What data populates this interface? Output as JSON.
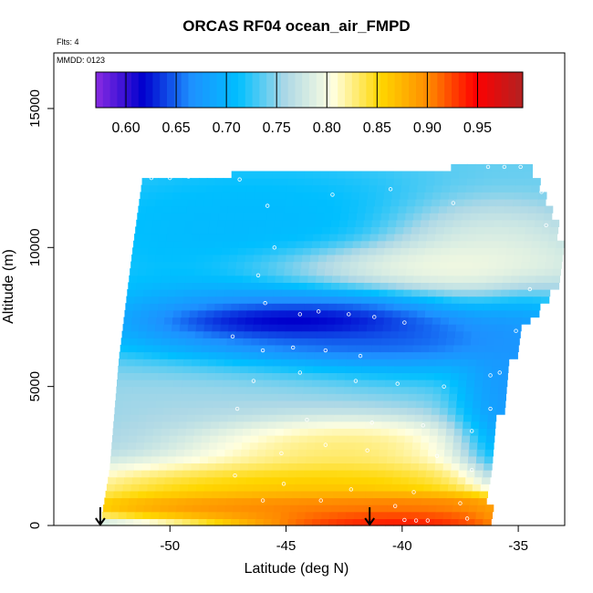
{
  "header": {
    "title": "ORCAS RF04 ocean_air_FMPD",
    "flights": "Flts: 4",
    "date_code": "MMDD: 0123"
  },
  "chart_data": {
    "type": "heatmap",
    "title": "ORCAS RF04 ocean_air_FMPD",
    "xlabel": "Latitude (deg N)",
    "ylabel": "Altitude (m)",
    "xlim": [
      -55,
      -33
    ],
    "ylim": [
      0,
      17000
    ],
    "x_ticks": [
      -50,
      -45,
      -40,
      -35
    ],
    "x_tick_labels": [
      "-50",
      "-45",
      "-40",
      "-35"
    ],
    "y_ticks": [
      0,
      5000,
      10000,
      15000
    ],
    "y_tick_labels": [
      "0",
      "5000",
      "10000",
      "15000"
    ],
    "colorbar": {
      "range": [
        0.57,
        0.995
      ],
      "ticks": [
        0.6,
        0.65,
        0.7,
        0.75,
        0.8,
        0.85,
        0.9,
        0.95
      ],
      "tick_labels": [
        "0.60",
        "0.65",
        "0.70",
        "0.75",
        "0.80",
        "0.85",
        "0.90",
        "0.95"
      ],
      "colors": [
        "#8a2be2",
        "#0000cd",
        "#1e90ff",
        "#00bfff",
        "#add8e6",
        "#ffffe0",
        "#ffd700",
        "#ff8c00",
        "#ff0000",
        "#b22222"
      ]
    },
    "coverage": {
      "south_edge": [
        [
          0,
          -53.0
        ],
        [
          2000,
          -52.6
        ],
        [
          4000,
          -52.4
        ],
        [
          6000,
          -52.2
        ],
        [
          8000,
          -51.9
        ],
        [
          10000,
          -51.6
        ],
        [
          12400,
          -51.2
        ]
      ],
      "north_edge": [
        [
          0,
          -36.5
        ],
        [
          1500,
          -36.3
        ],
        [
          3000,
          -36.1
        ],
        [
          5000,
          -35.8
        ],
        [
          7000,
          -35.0
        ],
        [
          9000,
          -33.2
        ],
        [
          11000,
          -33.5
        ],
        [
          12900,
          -34.7
        ]
      ],
      "top_profile": [
        [
          -51.2,
          12400
        ],
        [
          -48.5,
          12600
        ],
        [
          -44.0,
          12700
        ],
        [
          -40.0,
          12800
        ],
        [
          -37.0,
          12900
        ],
        [
          -34.7,
          12900
        ]
      ]
    },
    "field": [
      {
        "lat": -45.0,
        "alt": 7300,
        "value": 0.57,
        "spread_lat": 3.5,
        "spread_alt": 450
      },
      {
        "lat": -44.0,
        "alt": 7100,
        "value": 0.62,
        "spread_lat": 6.5,
        "spread_alt": 1300
      },
      {
        "lat": -43.5,
        "alt": 6600,
        "value": 0.64,
        "spread_lat": 5.0,
        "spread_alt": 500
      },
      {
        "lat": -46.5,
        "alt": 10600,
        "value": 0.7,
        "spread_lat": 6.0,
        "spread_alt": 1800
      },
      {
        "lat": -40.0,
        "alt": 9300,
        "value": 0.82,
        "spread_lat": 5.0,
        "spread_alt": 700
      },
      {
        "lat": -37.0,
        "alt": 9800,
        "value": 0.8,
        "spread_lat": 3.5,
        "spread_alt": 1300
      },
      {
        "lat": -44.0,
        "alt": 3000,
        "value": 0.86,
        "spread_lat": 4.5,
        "spread_alt": 800
      },
      {
        "lat": -45.0,
        "alt": 1400,
        "value": 0.89,
        "spread_lat": 7.0,
        "spread_alt": 900
      },
      {
        "lat": -42.0,
        "alt": 700,
        "value": 0.95,
        "spread_lat": 9.0,
        "spread_alt": 400
      },
      {
        "lat": -40.5,
        "alt": 200,
        "value": 0.985,
        "spread_lat": 5.0,
        "spread_alt": 200
      },
      {
        "lat": -35.0,
        "alt": 4800,
        "value": 0.66,
        "spread_lat": 1.8,
        "spread_alt": 2500
      },
      {
        "lat": -48.0,
        "alt": 4500,
        "value": 0.76,
        "spread_lat": 6.0,
        "spread_alt": 2000
      }
    ],
    "baseline_value": 0.74,
    "sample_points": [
      {
        "lat": -50.8,
        "alt": 12500
      },
      {
        "lat": -50.0,
        "alt": 12500
      },
      {
        "lat": -49.2,
        "alt": 12550
      },
      {
        "lat": -48.4,
        "alt": 12580
      },
      {
        "lat": -47.6,
        "alt": 12600
      },
      {
        "lat": -47.0,
        "alt": 12450
      },
      {
        "lat": -45.8,
        "alt": 11500
      },
      {
        "lat": -45.5,
        "alt": 10000
      },
      {
        "lat": -46.2,
        "alt": 9000
      },
      {
        "lat": -45.9,
        "alt": 8000
      },
      {
        "lat": -44.4,
        "alt": 7600
      },
      {
        "lat": -43.6,
        "alt": 7700
      },
      {
        "lat": -42.3,
        "alt": 7600
      },
      {
        "lat": -41.2,
        "alt": 7500
      },
      {
        "lat": -39.9,
        "alt": 7300
      },
      {
        "lat": -47.3,
        "alt": 6800
      },
      {
        "lat": -46.0,
        "alt": 6300
      },
      {
        "lat": -44.7,
        "alt": 6400
      },
      {
        "lat": -43.3,
        "alt": 6300
      },
      {
        "lat": -41.8,
        "alt": 6100
      },
      {
        "lat": -46.4,
        "alt": 5200
      },
      {
        "lat": -44.4,
        "alt": 5500
      },
      {
        "lat": -42.0,
        "alt": 5200
      },
      {
        "lat": -40.2,
        "alt": 5100
      },
      {
        "lat": -38.2,
        "alt": 5000
      },
      {
        "lat": -36.2,
        "alt": 5400
      },
      {
        "lat": -47.1,
        "alt": 4200
      },
      {
        "lat": -44.1,
        "alt": 3800
      },
      {
        "lat": -41.3,
        "alt": 3700
      },
      {
        "lat": -39.1,
        "alt": 3600
      },
      {
        "lat": -37.0,
        "alt": 3400
      },
      {
        "lat": -45.2,
        "alt": 2600
      },
      {
        "lat": -43.3,
        "alt": 2900
      },
      {
        "lat": -41.5,
        "alt": 2700
      },
      {
        "lat": -38.5,
        "alt": 2500
      },
      {
        "lat": -37.0,
        "alt": 2000
      },
      {
        "lat": -47.2,
        "alt": 1800
      },
      {
        "lat": -45.1,
        "alt": 1500
      },
      {
        "lat": -42.2,
        "alt": 1300
      },
      {
        "lat": -39.5,
        "alt": 1200
      },
      {
        "lat": -46.0,
        "alt": 900
      },
      {
        "lat": -43.5,
        "alt": 900
      },
      {
        "lat": -40.3,
        "alt": 700
      },
      {
        "lat": -37.5,
        "alt": 800
      },
      {
        "lat": -39.9,
        "alt": 200
      },
      {
        "lat": -39.4,
        "alt": 180
      },
      {
        "lat": -38.9,
        "alt": 180
      },
      {
        "lat": -37.2,
        "alt": 250
      },
      {
        "lat": -36.3,
        "alt": 12900
      },
      {
        "lat": -35.6,
        "alt": 12900
      },
      {
        "lat": -34.9,
        "alt": 12900
      },
      {
        "lat": -34.0,
        "alt": 12000
      },
      {
        "lat": -33.8,
        "alt": 10800
      },
      {
        "lat": -34.5,
        "alt": 8500
      },
      {
        "lat": -35.1,
        "alt": 7000
      },
      {
        "lat": -35.8,
        "alt": 5500
      },
      {
        "lat": -36.2,
        "alt": 4200
      },
      {
        "lat": -37.8,
        "alt": 11600
      },
      {
        "lat": -40.5,
        "alt": 12100
      },
      {
        "lat": -43.0,
        "alt": 11900
      }
    ],
    "markers": [
      {
        "lat": -53.0,
        "label": "arrow"
      },
      {
        "lat": -41.4,
        "label": "arrow"
      }
    ]
  }
}
